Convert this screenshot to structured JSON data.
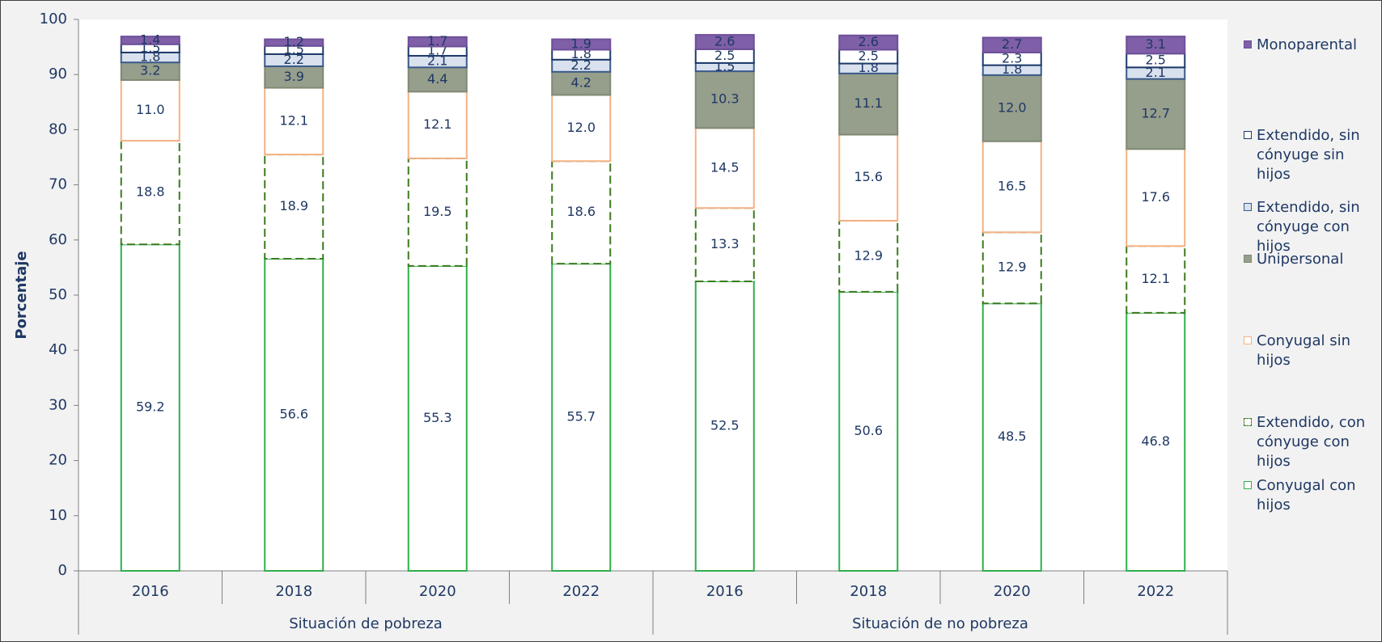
{
  "chart_data": {
    "type": "stacked-bar",
    "y_label": "Porcentaje",
    "categories": [
      "2016",
      "2018",
      "2020",
      "2022",
      "2016",
      "2018",
      "2020",
      "2022"
    ],
    "groups": [
      "Situación de pobreza",
      "Situación de no pobreza"
    ],
    "ylim": [
      0,
      100
    ],
    "yticks": [
      0,
      10,
      20,
      30,
      40,
      50,
      60,
      70,
      80,
      90,
      100
    ],
    "series": [
      {
        "name": "Conyugal con hijos",
        "color": "#2eb04b",
        "fill": "#ffffff",
        "dashed": false,
        "values": [
          59.2,
          56.6,
          55.3,
          55.7,
          52.5,
          50.6,
          48.5,
          46.8
        ],
        "value_labels": [
          "59.2",
          "56.6",
          "55.3",
          "55.7",
          "52.5",
          "50.6",
          "48.5",
          "46.8"
        ]
      },
      {
        "name": "Extendido, con cónyuge con hijos",
        "color": "#3c7a1e",
        "fill": "#ffffff",
        "dashed": true,
        "values": [
          18.8,
          18.9,
          19.5,
          18.6,
          13.3,
          12.9,
          12.9,
          12.1
        ],
        "value_labels": [
          "18.8",
          "18.9",
          "19.5",
          "18.6",
          "13.3",
          "12.9",
          "12.9",
          "12.1"
        ]
      },
      {
        "name": "Conyugal sin hijos",
        "color": "#f4b183",
        "fill": "#ffffff",
        "dashed": false,
        "values": [
          11.0,
          12.1,
          12.1,
          12.0,
          14.5,
          15.6,
          16.5,
          17.6
        ],
        "value_labels": [
          "11.0",
          "12.1",
          "12.1",
          "12.0",
          "14.5",
          "15.6",
          "16.5",
          "17.6"
        ]
      },
      {
        "name": "Unipersonal",
        "color": "#7f8a74",
        "fill": "#969e8c",
        "dashed": false,
        "values": [
          3.2,
          3.9,
          4.4,
          4.2,
          10.3,
          11.1,
          12.0,
          12.7
        ],
        "value_labels": [
          "3.2",
          "3.9",
          "4.4",
          "4.2",
          "10.3",
          "11.1",
          "12.0",
          "12.7"
        ]
      },
      {
        "name": "Extendido, sin cónyuge con hijos",
        "color": "#3a5a8a",
        "fill": "#d9e1ee",
        "dashed": false,
        "values": [
          1.8,
          2.2,
          2.1,
          2.2,
          1.5,
          1.8,
          1.8,
          2.1
        ],
        "value_labels": [
          "1.8",
          "2.2",
          "2.1",
          "2.2",
          "1.5",
          "1.8",
          "1.8",
          "2.1"
        ]
      },
      {
        "name": "Extendido, sin cónyuge sin hijos",
        "color": "#1f3a6a",
        "fill": "#ffffff",
        "dashed": false,
        "values": [
          1.5,
          1.5,
          1.7,
          1.8,
          2.5,
          2.5,
          2.3,
          2.5
        ],
        "value_labels": [
          "1.5",
          "1.5",
          "1.7",
          "1.8",
          "2.5",
          "2.5",
          "2.3",
          "2.5"
        ]
      },
      {
        "name": "Monoparental",
        "color": "#6f4f9a",
        "fill": "#7f5fa8",
        "dashed": false,
        "values": [
          1.4,
          1.2,
          1.7,
          1.9,
          2.6,
          2.6,
          2.7,
          3.1
        ],
        "value_labels": [
          "1.4",
          "1.2",
          "1.7",
          "1.9",
          "2.6",
          "2.6",
          "2.7",
          "3.1"
        ]
      }
    ]
  }
}
